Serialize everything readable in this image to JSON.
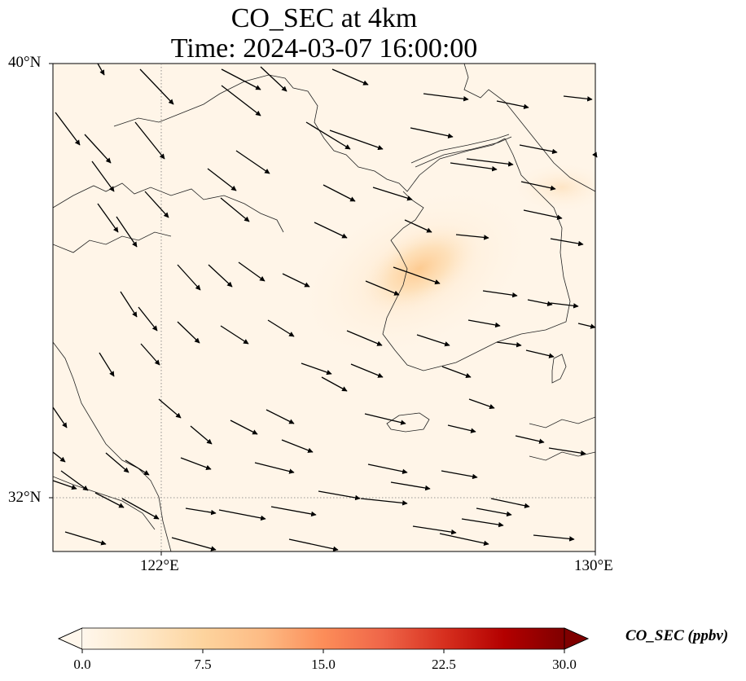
{
  "title": {
    "line1": "CO_SEC at 4km",
    "line2": "Time: 2024-03-07 16:00:00"
  },
  "axes": {
    "lat_labels": [
      "40°N",
      "32°N"
    ],
    "lon_labels": [
      "122°E",
      "130°E"
    ],
    "extent": {
      "lon_min": 120,
      "lon_max": 130,
      "lat_min": 31,
      "lat_max": 40
    }
  },
  "colorbar": {
    "label": "CO_SEC (ppbv)",
    "ticks": [
      "0.0",
      "7.5",
      "15.0",
      "22.5",
      "30.0"
    ],
    "min": 0,
    "max": 30,
    "extend": "both",
    "colormap": "OrRd",
    "colors": [
      "#fff7ec",
      "#fee8c8",
      "#fdd49e",
      "#fdbb84",
      "#fc8d59",
      "#ef6548",
      "#d7301f",
      "#b30000",
      "#7f0000"
    ]
  },
  "gridlines": {
    "style": "dotted",
    "lons": [
      122
    ],
    "lats": [
      32
    ]
  },
  "wind_arrow_color": "#000000",
  "plume": {
    "peak_value": 8,
    "center_lon": 127.2,
    "center_lat": 35.5,
    "notes_value_unit": "ppbv"
  }
}
